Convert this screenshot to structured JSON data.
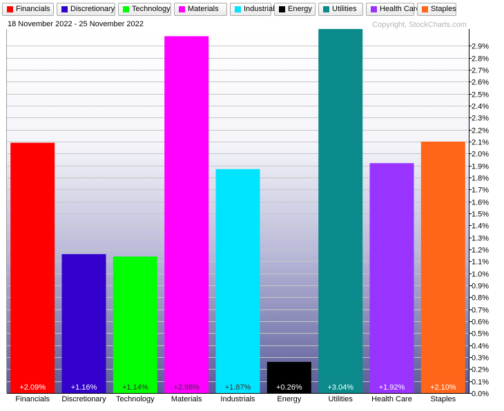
{
  "header": {
    "date_range": "18 November 2022 - 25 November 2022",
    "copyright": "Copyright, StockCharts.com"
  },
  "legend": [
    {
      "label": "Financials",
      "color": "#ff0000"
    },
    {
      "label": "Discretionary",
      "color": "#3300cc"
    },
    {
      "label": "Technology",
      "color": "#00ff00"
    },
    {
      "label": "Materials",
      "color": "#ff00ff"
    },
    {
      "label": "Industrials",
      "color": "#00e5ff"
    },
    {
      "label": "Energy",
      "color": "#000000"
    },
    {
      "label": "Utilities",
      "color": "#0a8a8a"
    },
    {
      "label": "Health Care",
      "color": "#9933ff"
    },
    {
      "label": "Staples",
      "color": "#ff6619"
    }
  ],
  "chart_data": {
    "type": "bar",
    "categories": [
      "Financials",
      "Discretionary",
      "Technology",
      "Materials",
      "Industrials",
      "Energy",
      "Utilities",
      "Health Care",
      "Staples"
    ],
    "values": [
      2.09,
      1.16,
      1.14,
      2.98,
      1.87,
      0.26,
      3.04,
      1.92,
      2.1
    ],
    "data_labels": [
      "+2.09%",
      "+1.16%",
      "+1.14%",
      "+2.98%",
      "+1.87%",
      "+0.26%",
      "+3.04%",
      "+1.92%",
      "+2.10%"
    ],
    "colors": [
      "#ff0000",
      "#3300cc",
      "#00ff00",
      "#ff00ff",
      "#00e5ff",
      "#000000",
      "#0a8a8a",
      "#9933ff",
      "#ff6619"
    ],
    "label_colors": [
      "#ffffff",
      "#ffffff",
      "#333333",
      "#333333",
      "#333333",
      "#ffffff",
      "#ffffff",
      "#ffffff",
      "#ffffff"
    ],
    "y_ticks": [
      "0.0%",
      "0.1%",
      "0.2%",
      "0.3%",
      "0.4%",
      "0.5%",
      "0.6%",
      "0.7%",
      "0.8%",
      "0.9%",
      "1.0%",
      "1.1%",
      "1.2%",
      "1.3%",
      "1.4%",
      "1.5%",
      "1.6%",
      "1.7%",
      "1.8%",
      "1.9%",
      "2.0%",
      "2.1%",
      "2.2%",
      "2.3%",
      "2.4%",
      "2.5%",
      "2.6%",
      "2.7%",
      "2.8%",
      "2.9%"
    ],
    "ylim": [
      0,
      3.04
    ],
    "y_axis_position": "right",
    "grid": true,
    "legend_position": "top"
  }
}
